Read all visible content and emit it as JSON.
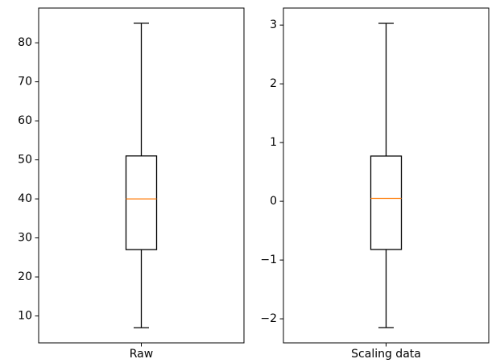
{
  "chart_data": [
    {
      "type": "boxplot",
      "title": "",
      "xlabel": "",
      "ylabel": "",
      "categories": [
        "Raw"
      ],
      "boxes": [
        {
          "whisker_low": 7,
          "q1": 27,
          "median": 40,
          "q3": 51,
          "whisker_high": 85
        }
      ],
      "ylim": [
        3.1,
        88.9
      ],
      "yticks": [
        10,
        20,
        30,
        40,
        50,
        60,
        70,
        80
      ],
      "ytick_labels": [
        "10",
        "20",
        "30",
        "40",
        "50",
        "60",
        "70",
        "80"
      ],
      "grid": false
    },
    {
      "type": "boxplot",
      "title": "",
      "xlabel": "",
      "ylabel": "",
      "categories": [
        "Scaling data"
      ],
      "boxes": [
        {
          "whisker_low": -2.15,
          "q1": -0.82,
          "median": 0.05,
          "q3": 0.77,
          "whisker_high": 3.03
        }
      ],
      "ylim": [
        -2.41,
        3.29
      ],
      "yticks": [
        -2,
        -1,
        0,
        1,
        2,
        3
      ],
      "ytick_labels": [
        "−2",
        "−1",
        "0",
        "1",
        "2",
        "3"
      ],
      "grid": false
    }
  ],
  "colors": {
    "box": "#000000",
    "median": "#ff7f0e",
    "axes": "#000000",
    "background": "#ffffff"
  }
}
